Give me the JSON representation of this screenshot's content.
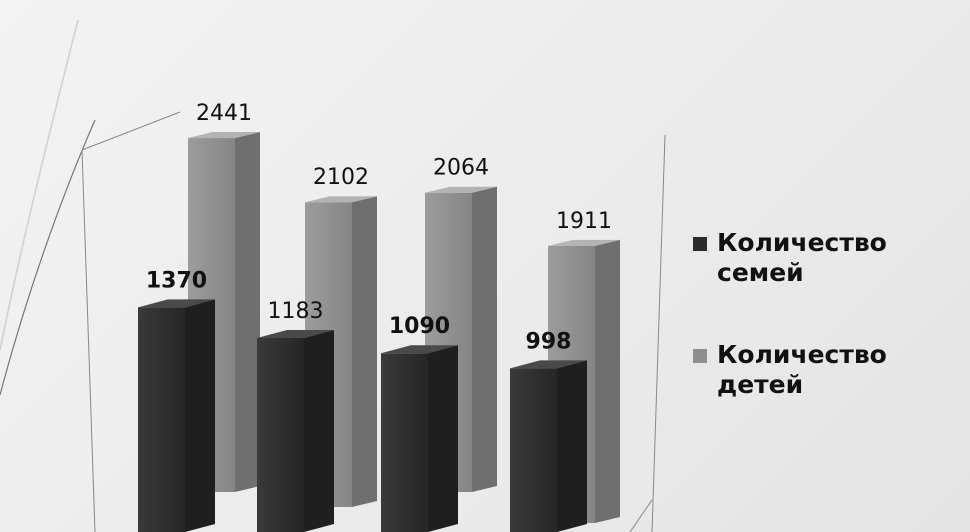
{
  "chart_data": {
    "type": "bar",
    "categories": [
      "",
      "",
      "",
      ""
    ],
    "series": [
      {
        "name": "Количество семей",
        "values": [
          1370,
          1183,
          1090,
          998
        ],
        "color": "#2f2f2f"
      },
      {
        "name": "Количество детей",
        "values": [
          2441,
          2102,
          2064,
          1911
        ],
        "color": "#8e8e8e"
      }
    ],
    "title": "",
    "xlabel": "",
    "ylabel": "",
    "legend": "right",
    "grid": false,
    "three_d": true
  }
}
